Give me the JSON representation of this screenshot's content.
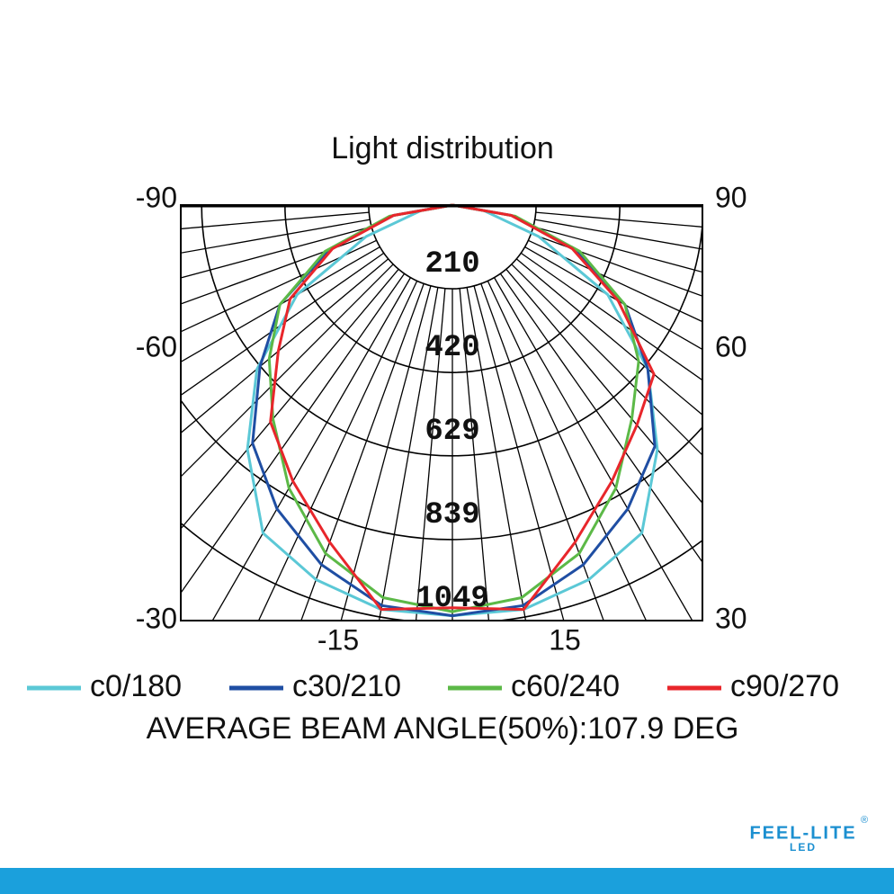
{
  "chart_data": {
    "type": "polar",
    "title": "Light distribution",
    "x": [
      -90,
      -80,
      -70,
      -60,
      -50,
      -40,
      -30,
      -20,
      -10,
      0,
      10,
      20,
      30,
      40,
      50,
      60,
      70,
      80,
      90
    ],
    "series": [
      {
        "name": "c0/180",
        "color": "#5bc8d6",
        "values": [
          0,
          80,
          230,
          450,
          640,
          800,
          950,
          1000,
          1030,
          1030,
          1030,
          1000,
          950,
          800,
          640,
          450,
          230,
          80,
          0
        ]
      },
      {
        "name": "c30/210",
        "color": "#1f4ea3",
        "values": [
          0,
          150,
          330,
          500,
          630,
          780,
          880,
          960,
          1020,
          1030,
          1020,
          960,
          880,
          790,
          640,
          500,
          330,
          150,
          0
        ]
      },
      {
        "name": "c60/240",
        "color": "#5cb947",
        "values": [
          0,
          160,
          340,
          500,
          600,
          700,
          820,
          930,
          1000,
          1020,
          1000,
          930,
          820,
          700,
          610,
          500,
          340,
          160,
          0
        ]
      },
      {
        "name": "c90/270",
        "color": "#e8262b",
        "values": [
          0,
          150,
          320,
          470,
          570,
          710,
          800,
          900,
          1030,
          1010,
          1030,
          900,
          800,
          720,
          660,
          480,
          320,
          150,
          0
        ]
      }
    ],
    "rlim": [
      0,
      1049
    ],
    "rticks": [
      210,
      420,
      629,
      839,
      1049
    ],
    "left_labels": [
      "-90",
      "-60",
      "-30"
    ],
    "right_labels": [
      "90",
      "60",
      "30"
    ],
    "bottom_labels": [
      "-15",
      "15"
    ],
    "annotation": "AVERAGE BEAM ANGLE(50%):107.9  DEG"
  },
  "logo": {
    "name": "FEEL-LITE",
    "sub": "LED",
    "mark": "®"
  }
}
